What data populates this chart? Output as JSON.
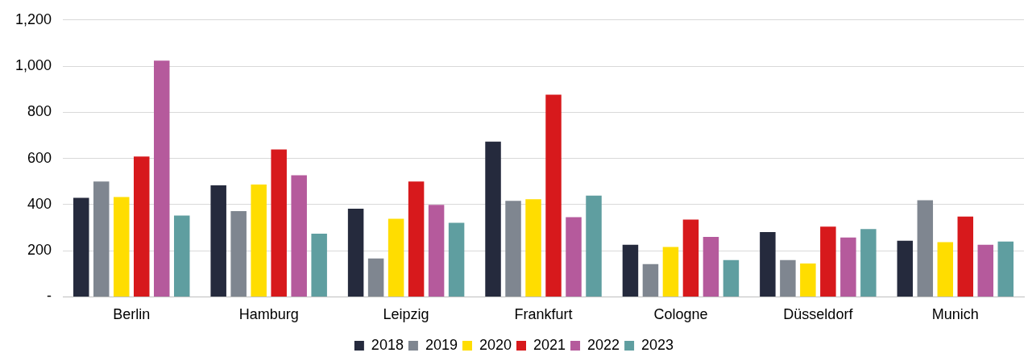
{
  "chart_data": {
    "type": "bar",
    "categories": [
      "Berlin",
      "Hamburg",
      "Leipzig",
      "Frankfurt",
      "Cologne",
      "Düsseldorf",
      "Munich"
    ],
    "series": [
      {
        "name": "2018",
        "color": "#252a3d",
        "values": [
          429,
          483,
          382,
          673,
          226,
          281,
          243
        ]
      },
      {
        "name": "2019",
        "color": "#7f8690",
        "values": [
          500,
          372,
          166,
          416,
          142,
          159,
          419
        ]
      },
      {
        "name": "2020",
        "color": "#ffdd00",
        "values": [
          433,
          487,
          338,
          423,
          216,
          145,
          237
        ]
      },
      {
        "name": "2021",
        "color": "#d7191c",
        "values": [
          608,
          639,
          500,
          876,
          335,
          304,
          348
        ]
      },
      {
        "name": "2022",
        "color": "#b55a9c",
        "values": [
          1024,
          527,
          399,
          345,
          260,
          257,
          226
        ]
      },
      {
        "name": "2023",
        "color": "#5f9ea0",
        "values": [
          352,
          274,
          321,
          439,
          159,
          294,
          240
        ]
      }
    ],
    "ylim": [
      0,
      1200
    ],
    "yticks": [
      {
        "value": 0,
        "label": "-"
      },
      200,
      400,
      600,
      800,
      {
        "value": 1000,
        "label": "1,000"
      },
      {
        "value": 1200,
        "label": "1,200"
      }
    ],
    "grid": "y",
    "legend": "bottom"
  }
}
